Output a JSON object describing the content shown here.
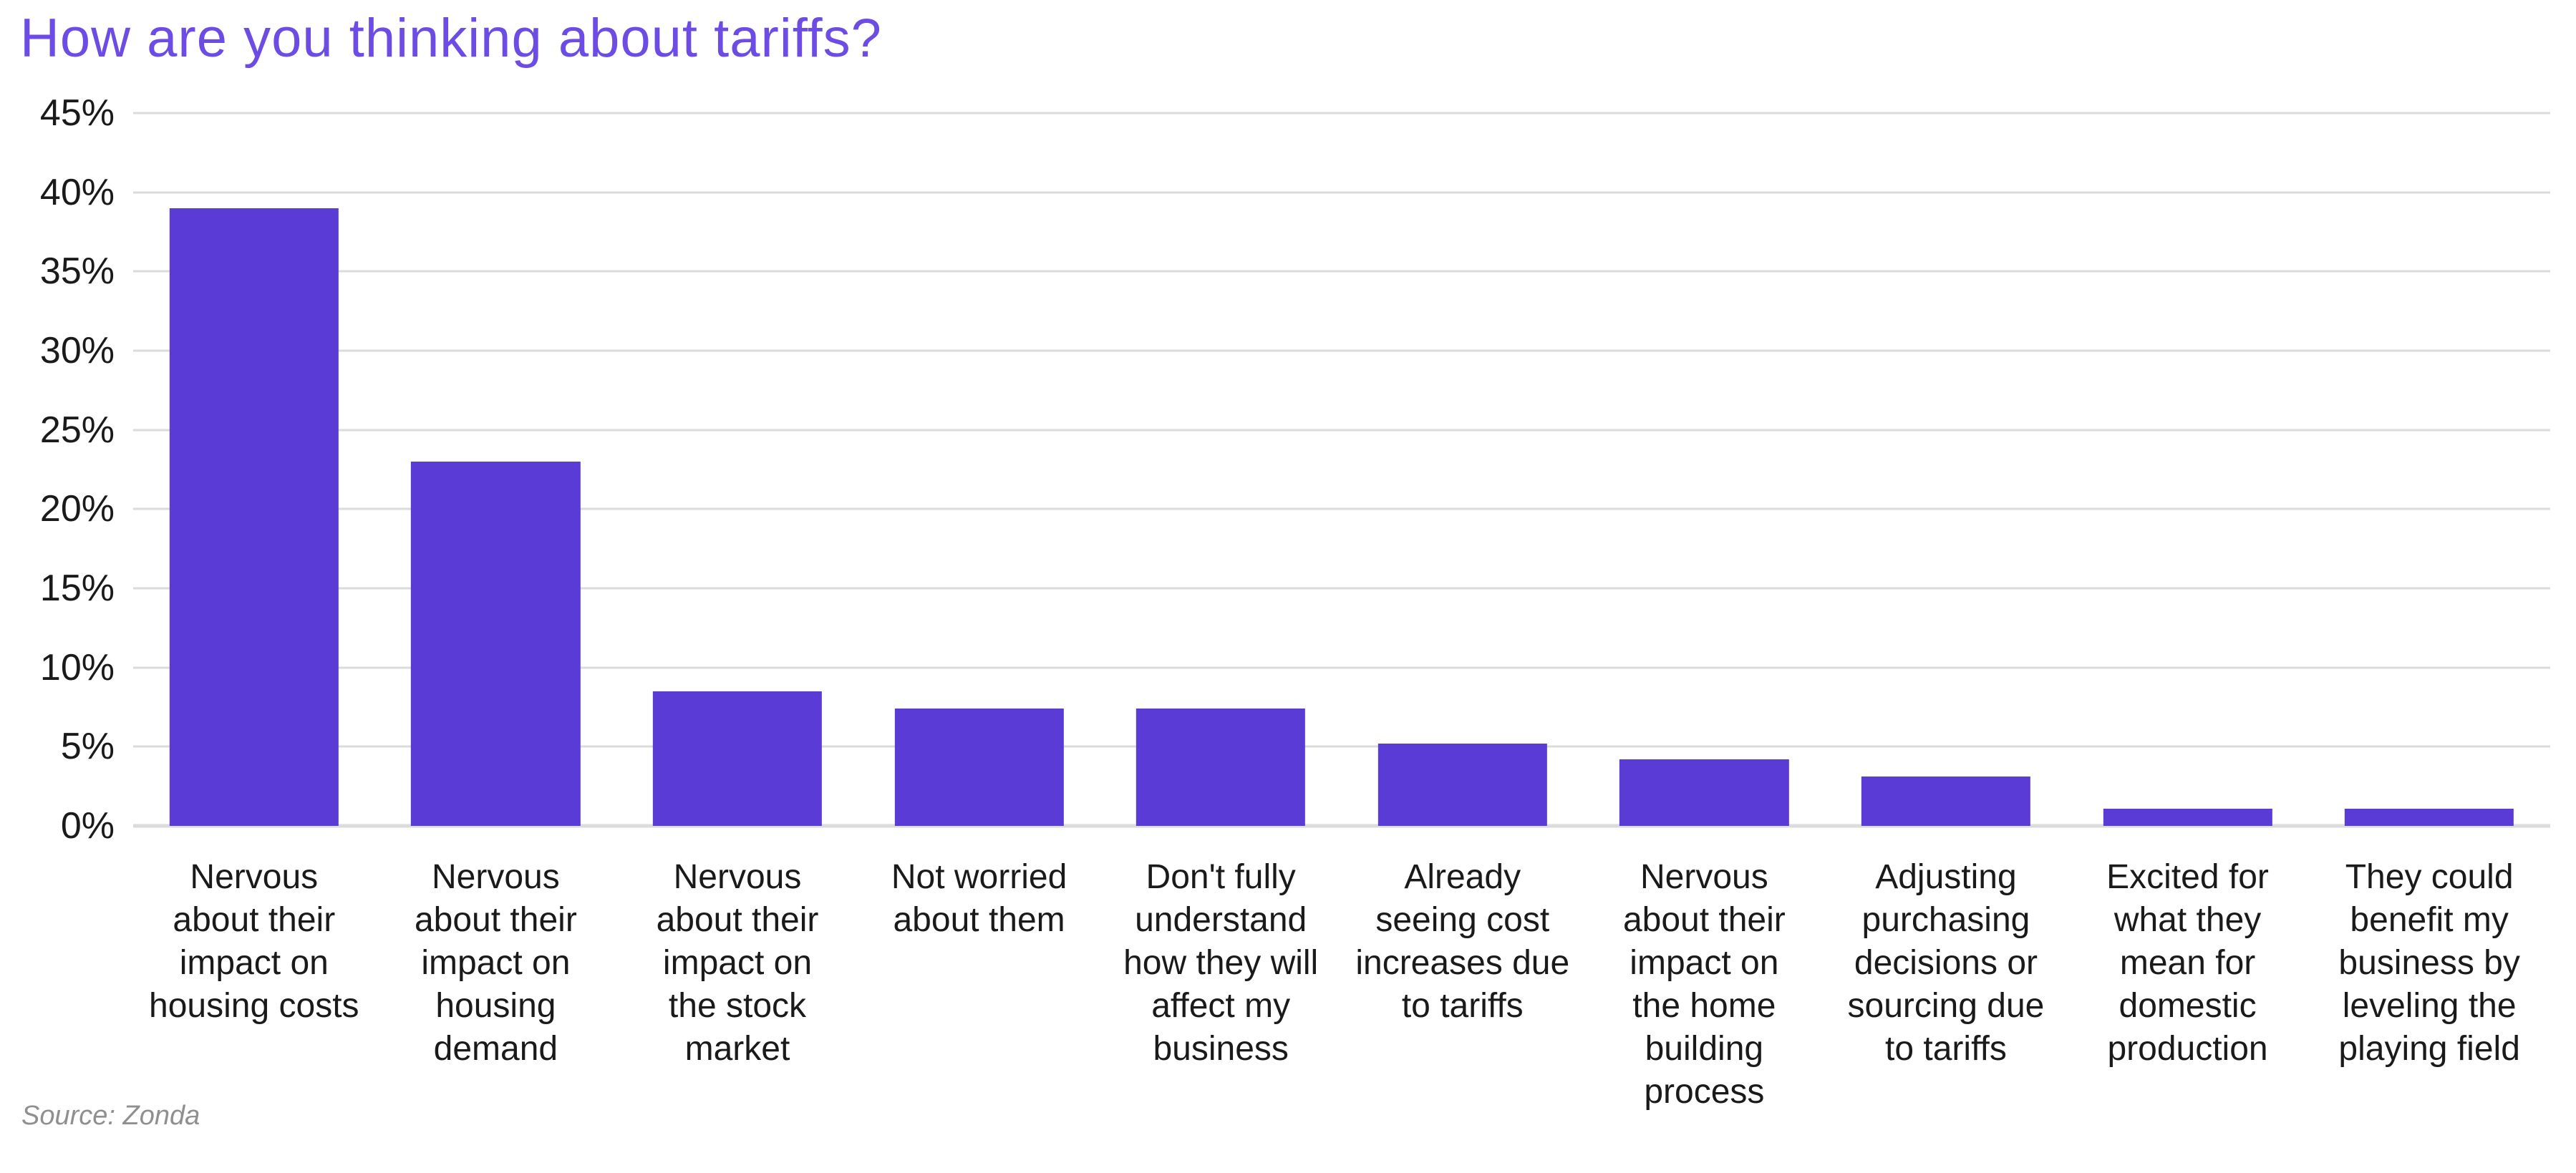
{
  "page": {
    "title": "How are you thinking about tariffs?",
    "source_note": "Source: Zonda"
  },
  "colors": {
    "background": "#FFFFFF",
    "title": "#6C4CE4",
    "bar": "#5B3BD5",
    "gridline": "#DBDBDB",
    "axis_label": "#1A1A1A",
    "source": "#8F8F8F"
  },
  "chart_data": {
    "type": "bar",
    "title": "How are you thinking about tariffs?",
    "xlabel": "",
    "ylabel": "",
    "unit": "%",
    "categories": [
      "Nervous about their impact on housing costs",
      "Nervous about their impact on housing demand",
      "Nervous about their impact on the stock market",
      "Not worried about them",
      "Don't fully understand how they will affect my business",
      "Already seeing cost increases due to tariffs",
      "Nervous about their impact on the home building process",
      "Adjusting purchasing decisions or sourcing due to tariffs",
      "Excited for what they mean for domestic production",
      "They could benefit my business by leveling the playing field"
    ],
    "values": [
      39,
      23,
      8.5,
      7.4,
      7.4,
      5.2,
      4.2,
      3.1,
      1.1,
      1.1
    ],
    "xtick_labels": [
      "Nervous\nabout their\nimpact on\nhousing costs",
      "Nervous\nabout their\nimpact on\nhousing\ndemand",
      "Nervous\nabout their\nimpact on\nthe stock\nmarket",
      "Not worried\nabout them",
      "Don't fully\nunderstand\nhow they will\naffect my\nbusiness",
      "Already\nseeing cost\nincreases due\nto tariffs",
      "Nervous\nabout their\nimpact on\nthe home\nbuilding\nprocess",
      "Adjusting\npurchasing\ndecisions or\nsourcing due\nto tariffs",
      "Excited for\nwhat they\nmean for\ndomestic\nproduction",
      "They could\nbenefit my\nbusiness by\nleveling the\nplaying field"
    ],
    "ylim": [
      0,
      45
    ],
    "ytick_step": 5,
    "ytick_labels": [
      "0%",
      "5%",
      "10%",
      "15%",
      "20%",
      "25%",
      "30%",
      "35%",
      "40%",
      "45%"
    ],
    "grid": true,
    "legend": "none",
    "source": "Source: Zonda",
    "bar_color": "#5B3BD5"
  }
}
